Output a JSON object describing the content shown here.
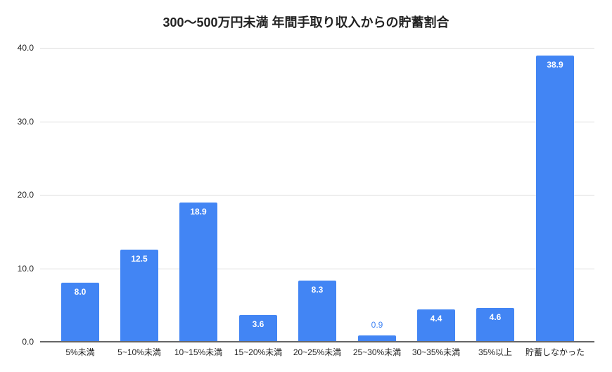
{
  "chart_data": {
    "type": "bar",
    "title": "300〜500万円未満 年間手取り収入からの貯蓄割合",
    "xlabel": "",
    "ylabel": "",
    "ylim": [
      0,
      40
    ],
    "yticks": [
      "0.0",
      "10.0",
      "20.0",
      "30.0",
      "40.0"
    ],
    "grid": true,
    "legend": null,
    "bar_color": "#4285f4",
    "categories": [
      "5%未満",
      "5~10%未満",
      "10~15%未満",
      "15~20%未満",
      "20~25%未満",
      "25~30%未満",
      "30~35%未満",
      "35%以上",
      "貯蓄しなかった"
    ],
    "values": [
      8.0,
      12.5,
      18.9,
      3.6,
      8.3,
      0.9,
      4.4,
      4.6,
      38.9
    ],
    "labels": [
      "8.0",
      "12.5",
      "18.9",
      "3.6",
      "8.3",
      "0.9",
      "4.4",
      "4.6",
      "38.9"
    ]
  }
}
